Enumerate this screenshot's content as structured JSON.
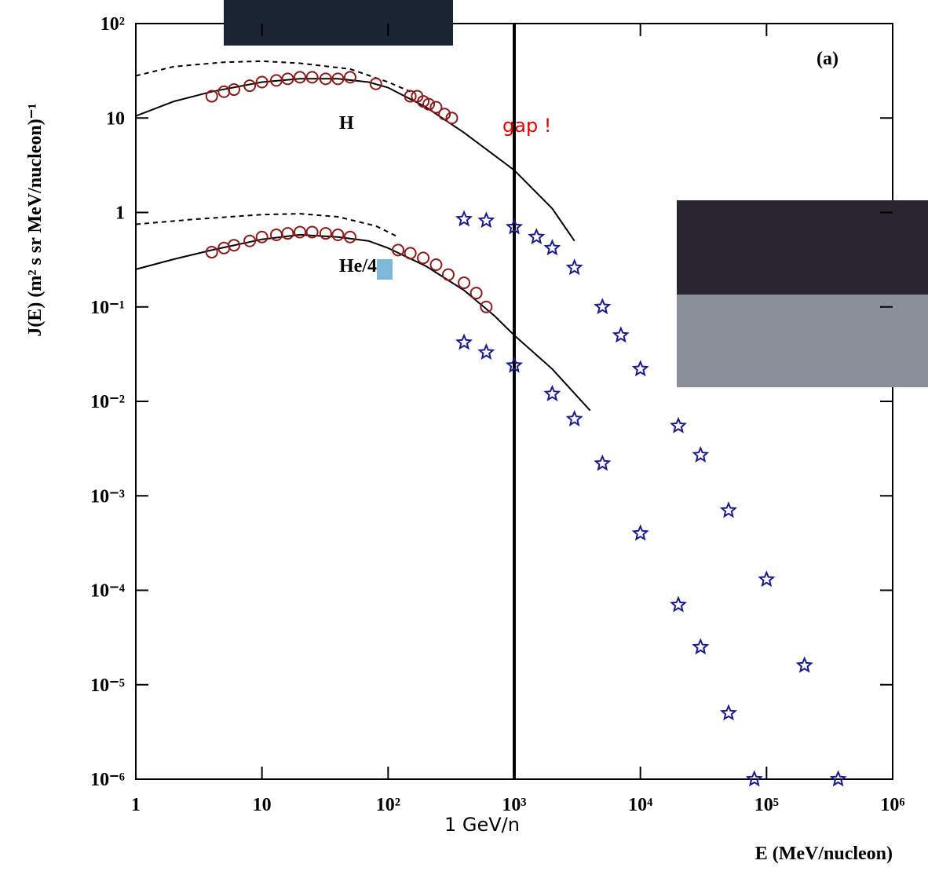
{
  "chart_data": {
    "type": "line",
    "xlabel": "E (MeV/nucleon)",
    "ylabel": "J(E) (m² s sr MeV/nucleon)⁻¹",
    "xscale": "log",
    "yscale": "log",
    "xlim": [
      1,
      1000000
    ],
    "ylim": [
      1e-06,
      100
    ],
    "xticks": [
      1,
      10,
      {
        "value": 100,
        "label": "10²"
      },
      {
        "value": 1000,
        "label": "10³"
      },
      {
        "value": 10000,
        "label": "10⁴"
      },
      {
        "value": 100000,
        "label": "10⁵"
      },
      {
        "value": 1000000,
        "label": "10⁶"
      }
    ],
    "yticks": [
      {
        "value": 1e-06,
        "label": "10⁻⁶"
      },
      {
        "value": 1e-05,
        "label": "10⁻⁵"
      },
      {
        "value": 0.0001,
        "label": "10⁻⁴"
      },
      {
        "value": 0.001,
        "label": "10⁻³"
      },
      {
        "value": 0.01,
        "label": "10⁻²"
      },
      {
        "value": 0.1,
        "label": "10⁻¹"
      },
      1,
      10,
      {
        "value": 100,
        "label": "10²"
      }
    ],
    "vline": 1000,
    "annotations": {
      "panel": "(a)",
      "h": "H",
      "he": "He/4",
      "gap": "gap !",
      "gev": "1 GeV/n"
    },
    "series": [
      {
        "kind": "dashed",
        "color": "#000000",
        "x": [
          1,
          2,
          5,
          10,
          20,
          50,
          100,
          150
        ],
        "values": [
          28,
          35,
          39,
          40,
          38,
          33,
          24,
          19
        ]
      },
      {
        "kind": "dashed",
        "color": "#000000",
        "x": [
          1,
          3,
          10,
          20,
          40,
          80,
          120
        ],
        "values": [
          0.75,
          0.85,
          0.95,
          0.97,
          0.9,
          0.72,
          0.55
        ]
      },
      {
        "kind": "solid",
        "color": "#000000",
        "x": [
          1,
          2,
          4,
          10,
          20,
          40,
          70,
          100,
          200,
          400,
          700,
          1000,
          2000,
          3000
        ],
        "values": [
          10.5,
          15,
          19,
          24,
          26,
          26,
          24,
          21,
          13,
          7,
          4,
          2.8,
          1.1,
          0.5
        ]
      },
      {
        "kind": "solid",
        "color": "#000000",
        "x": [
          1,
          2,
          4,
          10,
          20,
          40,
          70,
          100,
          200,
          400,
          700,
          1000,
          2000,
          4000
        ],
        "values": [
          0.25,
          0.32,
          0.4,
          0.52,
          0.58,
          0.55,
          0.5,
          0.42,
          0.27,
          0.15,
          0.08,
          0.05,
          0.022,
          0.008
        ]
      },
      {
        "kind": "circle",
        "color": "#8b1a1a",
        "x": [
          4,
          5,
          6,
          8,
          10,
          13,
          16,
          20,
          25,
          32,
          40,
          50,
          80,
          150,
          170,
          190,
          210,
          240,
          280,
          320
        ],
        "values": [
          17,
          19,
          20,
          22,
          24,
          25,
          26,
          27,
          27,
          26,
          26,
          27,
          23,
          17,
          17,
          15,
          14,
          13,
          11,
          10
        ]
      },
      {
        "kind": "circle",
        "color": "#8b1a1a",
        "x": [
          4,
          5,
          6,
          8,
          10,
          13,
          16,
          20,
          25,
          32,
          40,
          50,
          120,
          150,
          190,
          240,
          300,
          400,
          500,
          600
        ],
        "values": [
          0.38,
          0.42,
          0.45,
          0.5,
          0.55,
          0.58,
          0.6,
          0.62,
          0.62,
          0.6,
          0.58,
          0.55,
          0.4,
          0.37,
          0.33,
          0.28,
          0.22,
          0.18,
          0.14,
          0.1
        ]
      },
      {
        "kind": "star",
        "color": "#1a1a8c",
        "x": [
          400,
          600,
          1000,
          1500,
          2000,
          3000,
          5000,
          7000,
          10000,
          20000,
          30000,
          50000,
          100000,
          200000,
          370000
        ],
        "values": [
          0.85,
          0.82,
          0.7,
          0.55,
          0.42,
          0.26,
          0.1,
          0.05,
          0.022,
          0.0055,
          0.0027,
          0.0007,
          0.00013,
          1.6e-05,
          1e-06
        ]
      },
      {
        "kind": "star",
        "color": "#1a1a8c",
        "x": [
          400,
          600,
          1000,
          2000,
          3000,
          5000,
          10000,
          20000,
          30000,
          50000,
          80000
        ],
        "values": [
          0.042,
          0.033,
          0.024,
          0.012,
          0.0065,
          0.0022,
          0.0004,
          7e-05,
          2.5e-05,
          5e-06,
          1e-06
        ]
      }
    ]
  }
}
